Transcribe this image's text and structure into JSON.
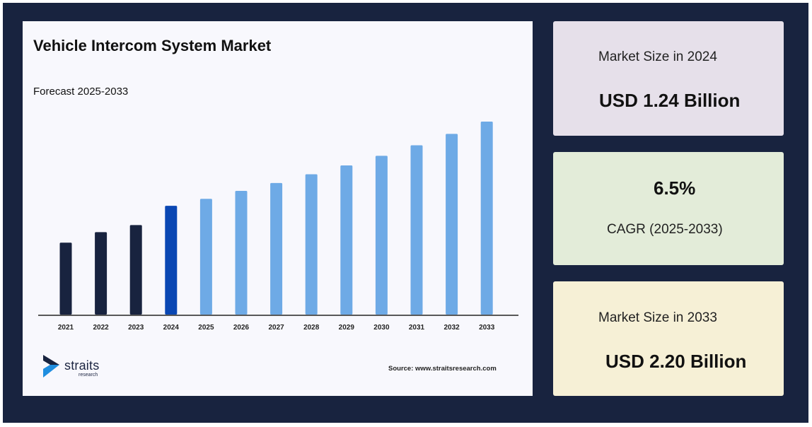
{
  "chart_title": "Vehicle Intercom System Market",
  "chart_subtitle": "Forecast 2025-2033",
  "source": "Source: www.straitsresearch.com",
  "logo": {
    "name": "straits",
    "sub": "research"
  },
  "cards": {
    "size_2024": {
      "label": "Market Size in 2024",
      "value": "USD 1.24 Billion"
    },
    "cagr": {
      "value": "6.5%",
      "label": "CAGR (2025-2033)"
    },
    "size_2033": {
      "label": "Market Size in 2033",
      "value": "USD 2.20 Billion"
    }
  },
  "colors": {
    "historic": "#18233f",
    "base_year": "#0a47b3",
    "forecast": "#6eaae6"
  },
  "chart_data": {
    "type": "bar",
    "title": "Vehicle Intercom System Market",
    "subtitle": "Forecast 2025-2033",
    "categories": [
      "2021",
      "2022",
      "2023",
      "2024",
      "2025",
      "2026",
      "2027",
      "2028",
      "2029",
      "2030",
      "2031",
      "2032",
      "2033"
    ],
    "values": [
      0.82,
      0.94,
      1.02,
      1.24,
      1.32,
      1.41,
      1.5,
      1.6,
      1.7,
      1.81,
      1.93,
      2.06,
      2.2
    ],
    "ylim": [
      0,
      2.2
    ],
    "grid": false,
    "legend": "none"
  }
}
